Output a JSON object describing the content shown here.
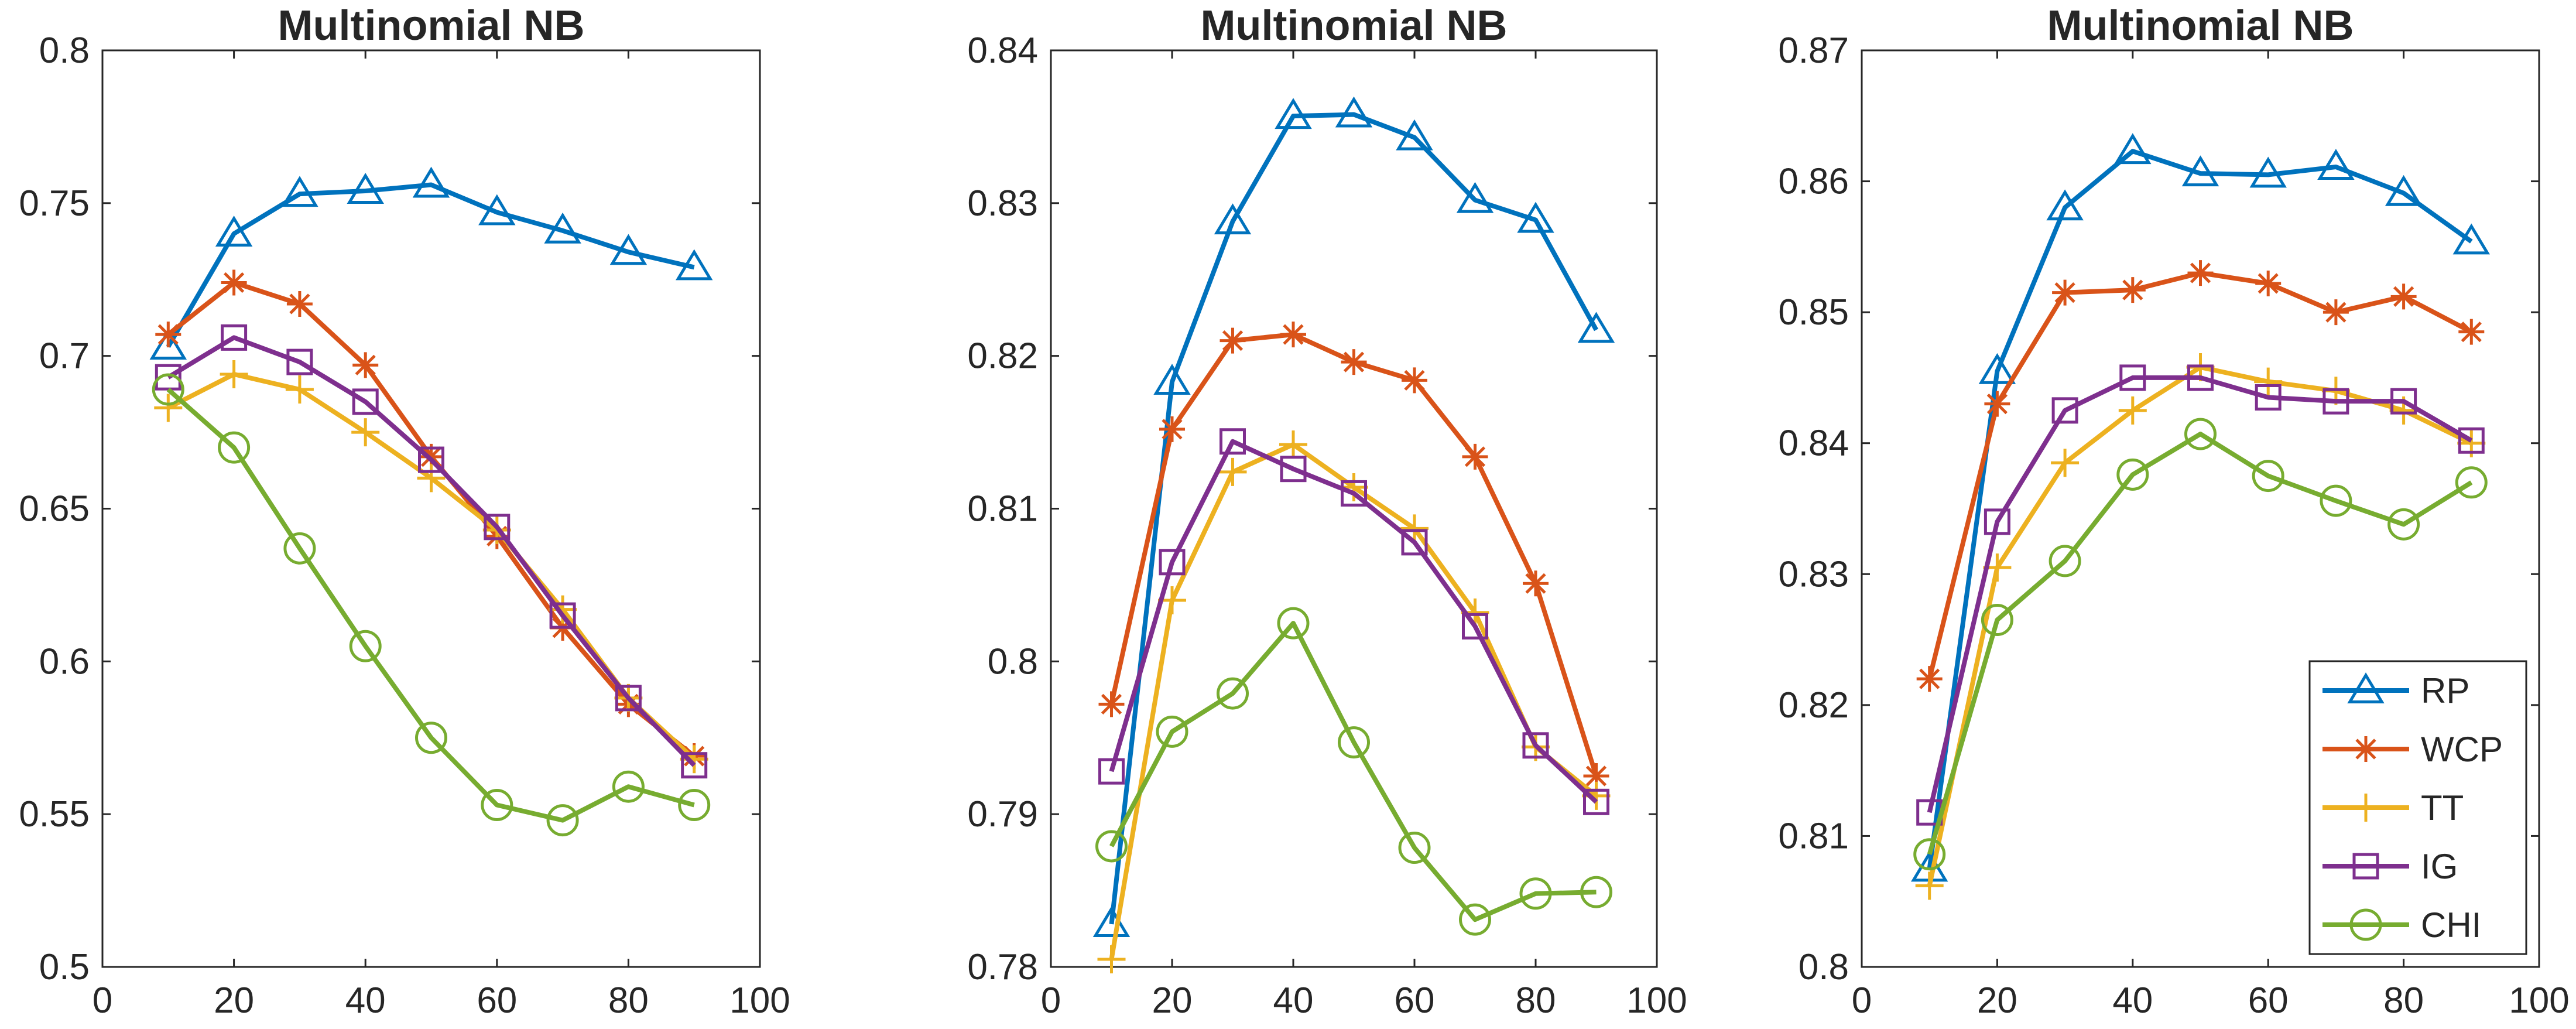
{
  "chart_data": [
    {
      "type": "line",
      "title": "Multinomial NB",
      "xlabel": "",
      "ylabel": "",
      "xlim": [
        0,
        100
      ],
      "ylim": [
        0.5,
        0.8
      ],
      "xticks": [
        "0",
        "20",
        "40",
        "60",
        "80",
        "100"
      ],
      "yticks": [
        "0.5",
        "0.55",
        "0.6",
        "0.65",
        "0.7",
        "0.75",
        "0.8"
      ],
      "x": [
        10,
        20,
        30,
        40,
        50,
        60,
        70,
        80,
        90
      ],
      "grid": false,
      "legend": null,
      "series": [
        {
          "name": "RP",
          "values": [
            0.703,
            0.74,
            0.753,
            0.754,
            0.756,
            0.747,
            0.741,
            0.734,
            0.729
          ]
        },
        {
          "name": "WCP",
          "values": [
            0.707,
            0.724,
            0.717,
            0.697,
            0.667,
            0.641,
            0.611,
            0.586,
            0.569
          ]
        },
        {
          "name": "TT",
          "values": [
            0.683,
            0.694,
            0.689,
            0.675,
            0.66,
            0.643,
            0.617,
            0.588,
            0.568
          ]
        },
        {
          "name": "IG",
          "values": [
            0.693,
            0.706,
            0.698,
            0.685,
            0.666,
            0.644,
            0.615,
            0.588,
            0.566
          ]
        },
        {
          "name": "CHI",
          "values": [
            0.689,
            0.67,
            0.637,
            0.605,
            0.575,
            0.553,
            0.548,
            0.559,
            0.553
          ]
        }
      ]
    },
    {
      "type": "line",
      "title": "Multinomial NB",
      "xlabel": "",
      "ylabel": "",
      "xlim": [
        0,
        100
      ],
      "ylim": [
        0.78,
        0.84
      ],
      "xticks": [
        "0",
        "20",
        "40",
        "60",
        "80",
        "100"
      ],
      "yticks": [
        "0.78",
        "0.79",
        "0.8",
        "0.81",
        "0.82",
        "0.83",
        "0.84"
      ],
      "x": [
        10,
        20,
        30,
        40,
        50,
        60,
        70,
        80,
        90
      ],
      "grid": false,
      "legend": null,
      "series": [
        {
          "name": "RP",
          "values": [
            0.7828,
            0.8183,
            0.8288,
            0.8357,
            0.8358,
            0.8343,
            0.8302,
            0.8289,
            0.8217
          ]
        },
        {
          "name": "WCP",
          "values": [
            0.7972,
            0.8152,
            0.821,
            0.8214,
            0.8196,
            0.8184,
            0.8134,
            0.8051,
            0.7925
          ]
        },
        {
          "name": "TT",
          "values": [
            0.7805,
            0.804,
            0.8124,
            0.8142,
            0.8114,
            0.8087,
            0.8032,
            0.7944,
            0.7912
          ]
        },
        {
          "name": "IG",
          "values": [
            0.7928,
            0.8065,
            0.8144,
            0.8126,
            0.811,
            0.8078,
            0.8023,
            0.7945,
            0.7908
          ]
        },
        {
          "name": "CHI",
          "values": [
            0.7879,
            0.7954,
            0.7979,
            0.8025,
            0.7947,
            0.7878,
            0.7831,
            0.7848,
            0.7849
          ]
        }
      ]
    },
    {
      "type": "line",
      "title": "Multinomial NB",
      "xlabel": "",
      "ylabel": "",
      "xlim": [
        0,
        100
      ],
      "ylim": [
        0.8,
        0.87
      ],
      "xticks": [
        "0",
        "20",
        "40",
        "60",
        "80",
        "100"
      ],
      "yticks": [
        "0.8",
        "0.81",
        "0.82",
        "0.83",
        "0.84",
        "0.85",
        "0.86",
        "0.87"
      ],
      "x": [
        10,
        20,
        30,
        40,
        50,
        60,
        70,
        80,
        90
      ],
      "grid": false,
      "legend": "bottom-right",
      "series": [
        {
          "name": "RP",
          "values": [
            0.8075,
            0.8455,
            0.858,
            0.8623,
            0.8606,
            0.8605,
            0.8611,
            0.8591,
            0.8554
          ]
        },
        {
          "name": "WCP",
          "values": [
            0.822,
            0.843,
            0.8515,
            0.8517,
            0.853,
            0.8522,
            0.85,
            0.8512,
            0.8485
          ]
        },
        {
          "name": "TT",
          "values": [
            0.8062,
            0.8305,
            0.8385,
            0.8425,
            0.8458,
            0.8447,
            0.844,
            0.8425,
            0.84
          ]
        },
        {
          "name": "IG",
          "values": [
            0.8118,
            0.834,
            0.8425,
            0.845,
            0.845,
            0.8435,
            0.8432,
            0.8432,
            0.8402
          ]
        },
        {
          "name": "CHI",
          "values": [
            0.8086,
            0.8265,
            0.831,
            0.8376,
            0.8407,
            0.8375,
            0.8356,
            0.8338,
            0.837
          ]
        }
      ]
    }
  ],
  "styles": {
    "colors": {
      "RP": "#0072bd",
      "WCP": "#d95319",
      "TT": "#edb120",
      "IG": "#7e2f8e",
      "CHI": "#77ac30"
    },
    "markers": {
      "RP": "triangle",
      "WCP": "asterisk",
      "TT": "plus",
      "IG": "square",
      "CHI": "circle"
    },
    "axis_color": "#262626"
  }
}
